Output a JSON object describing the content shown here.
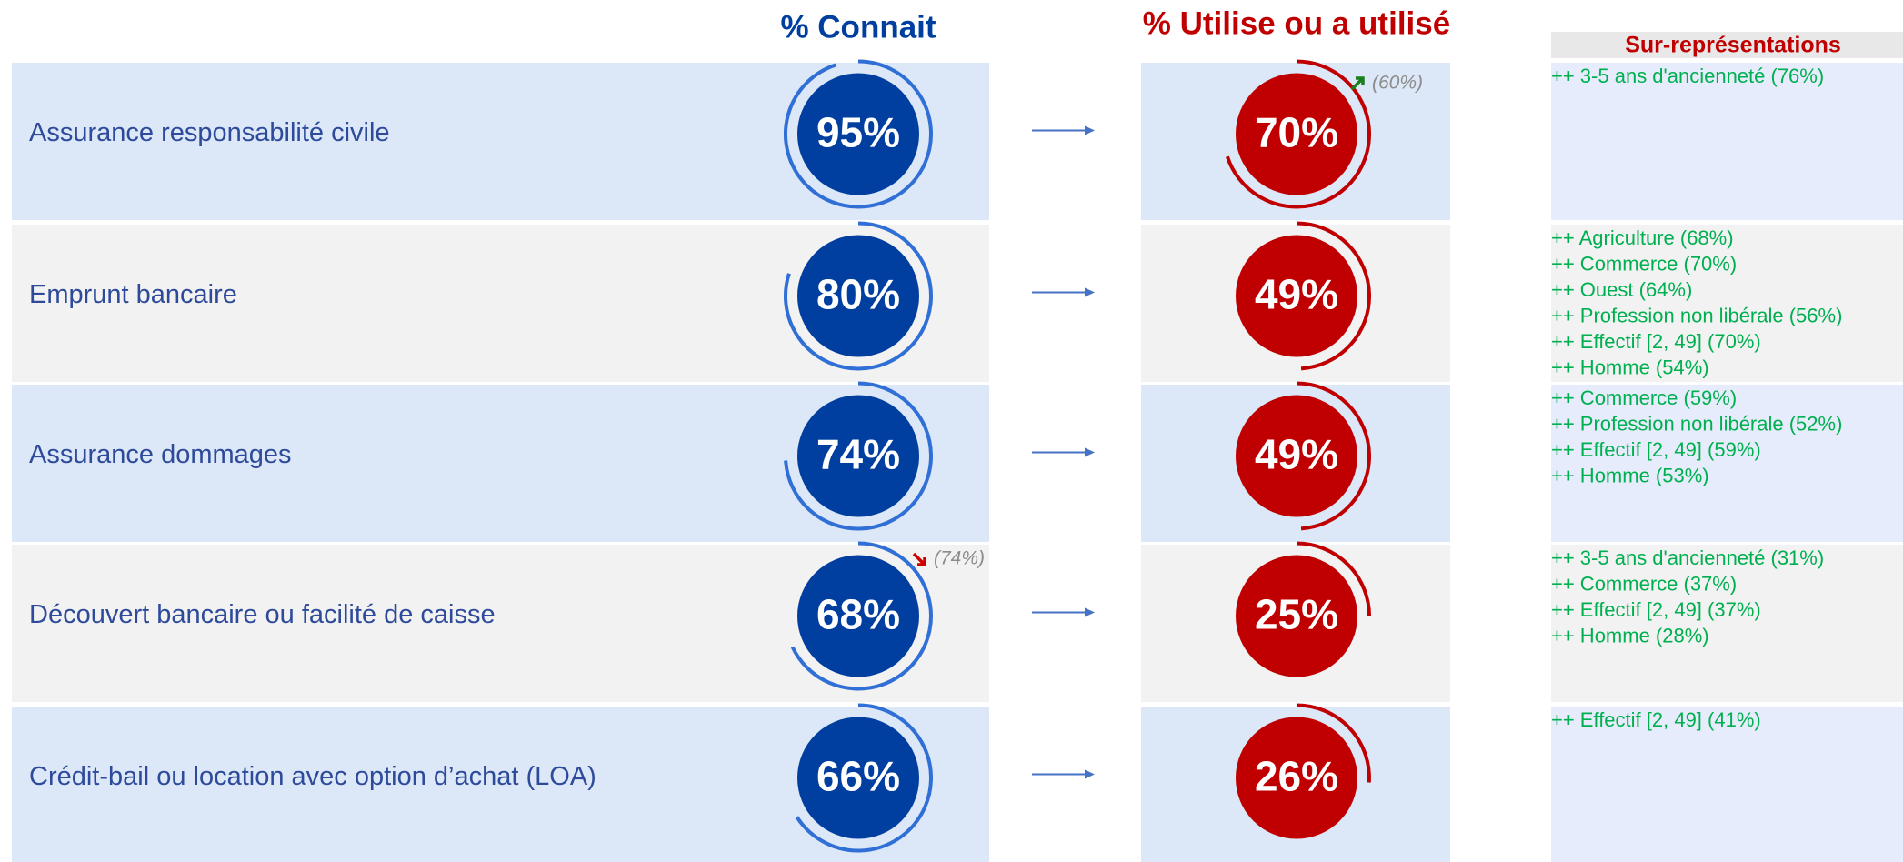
{
  "header": {
    "known": "% Connait",
    "used": "% Utilise ou a utilisé",
    "over": "Sur-représentations"
  },
  "rows": [
    {
      "label": "Assurance responsabilité civile",
      "known": 95,
      "known_label": "95%",
      "used": 70,
      "used_label": "70%",
      "used_previous": 60,
      "used_previous_label": "(60%)",
      "over": [
        "++ 3-5 ans d'ancienneté (76%)"
      ]
    },
    {
      "label": "Emprunt bancaire",
      "known": 80,
      "known_label": "80%",
      "used": 49,
      "used_label": "49%",
      "over": [
        "++ Agriculture (68%)",
        "++ Commerce (70%)",
        "++ Ouest (64%)",
        "++ Profession non libérale (56%)",
        "++ Effectif [2, 49] (70%)",
        "++ Homme (54%)"
      ]
    },
    {
      "label": "Assurance dommages",
      "known": 74,
      "known_label": "74%",
      "used": 49,
      "used_label": "49%",
      "over": [
        "++ Commerce (59%)",
        "++ Profession non libérale (52%)",
        "++ Effectif [2, 49] (59%)",
        "++ Homme (53%)"
      ]
    },
    {
      "label": "Découvert bancaire ou facilité de caisse",
      "known": 68,
      "known_label": "68%",
      "known_previous": 74,
      "known_previous_label": "(74%)",
      "used": 25,
      "used_label": "25%",
      "over": [
        "++ 3-5 ans d'ancienneté (31%)",
        "++ Commerce (37%)",
        "++ Effectif [2, 49] (37%)",
        "++ Homme (28%)"
      ]
    },
    {
      "label": "Crédit-bail ou location avec option d’achat (LOA)",
      "known": 66,
      "known_label": "66%",
      "used": 26,
      "used_label": "26%",
      "over": [
        "++ Effectif [2, 49] (41%)"
      ]
    }
  ]
}
